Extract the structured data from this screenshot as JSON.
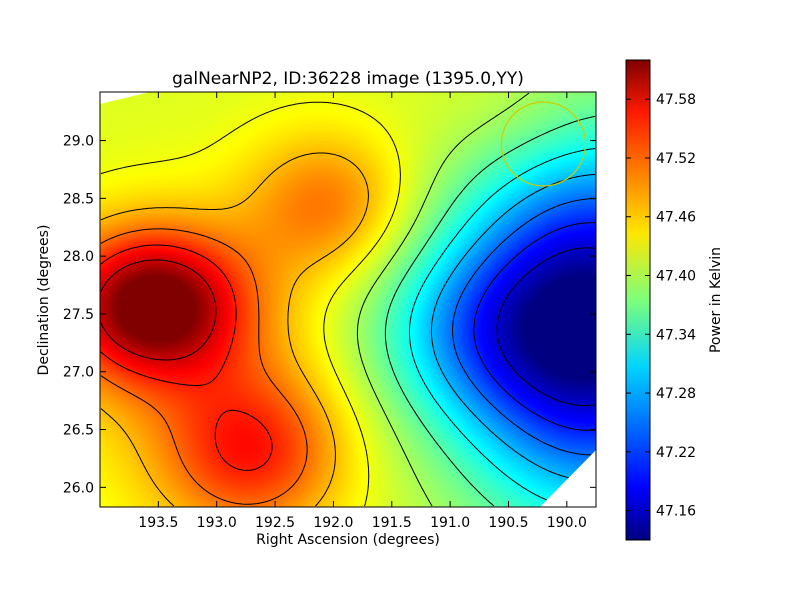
{
  "chart_data": {
    "type": "heatmap",
    "title": "galNearNP2, ID:36228 image (1395.0,YY)",
    "xlabel": "Right Ascension (degrees)",
    "ylabel": "Declination (degrees)",
    "xlim": [
      194.0,
      189.75
    ],
    "ylim": [
      25.83,
      29.42
    ],
    "x_ticks": [
      193.5,
      193.0,
      192.5,
      192.0,
      191.5,
      191.0,
      190.5,
      190.0
    ],
    "x_tick_labels": [
      "193.5",
      "193.0",
      "192.5",
      "192.0",
      "191.5",
      "191.0",
      "190.5",
      "190.0"
    ],
    "y_ticks": [
      26.0,
      26.5,
      27.0,
      27.5,
      28.0,
      28.5,
      29.0
    ],
    "y_tick_labels": [
      "26.0",
      "26.5",
      "27.0",
      "27.5",
      "28.0",
      "28.5",
      "29.0"
    ],
    "colorbar": {
      "label": "Power in Kelvin",
      "range": [
        47.13,
        47.62
      ],
      "ticks": [
        47.16,
        47.22,
        47.28,
        47.34,
        47.4,
        47.46,
        47.52,
        47.58
      ],
      "tick_labels": [
        "47.16",
        "47.22",
        "47.28",
        "47.34",
        "47.40",
        "47.46",
        "47.52",
        "47.58"
      ],
      "colormap": "jet"
    },
    "features": [
      {
        "kind": "maximum",
        "ra": 193.5,
        "dec": 27.58,
        "value": 47.61
      },
      {
        "kind": "local-maximum",
        "ra": 192.75,
        "dec": 26.28,
        "value": 47.55
      },
      {
        "kind": "local-maximum",
        "ra": 192.05,
        "dec": 28.45,
        "value": 47.5
      },
      {
        "kind": "minimum",
        "ra": 189.8,
        "dec": 27.4,
        "value": 47.13
      }
    ],
    "contour_levels": 12,
    "grid": false,
    "beam_marker": {
      "shape": "circle",
      "ra": 190.2,
      "dec": 28.97,
      "radius_deg": 0.36,
      "color": "#cccc00"
    }
  }
}
